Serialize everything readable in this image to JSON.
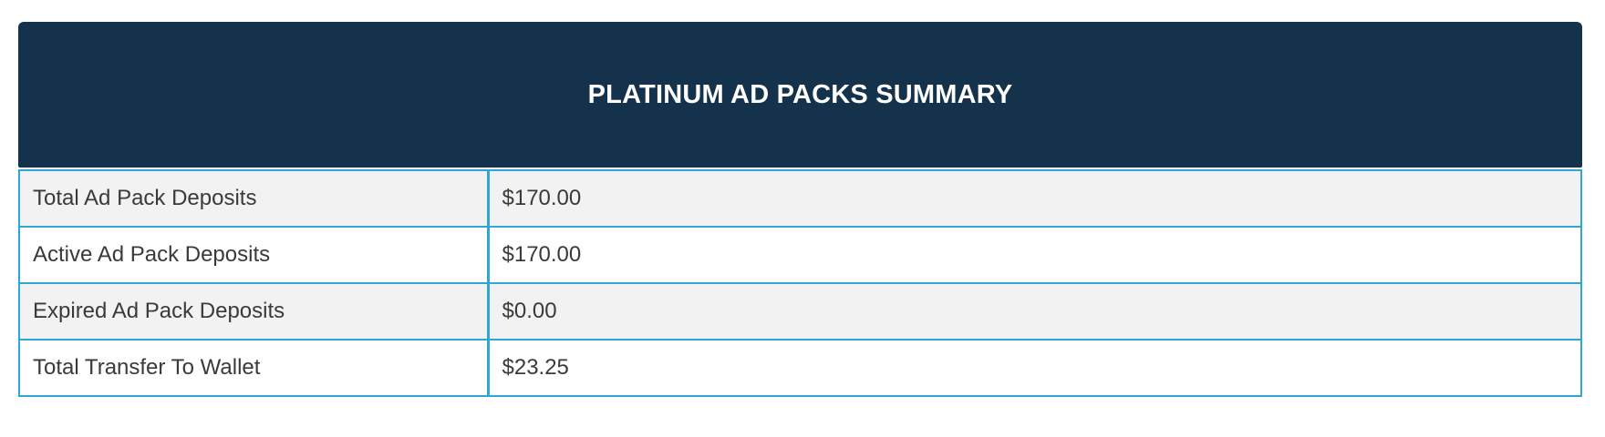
{
  "summary": {
    "title": "PLATINUM AD PACKS SUMMARY",
    "rows": [
      {
        "label": "Total Ad Pack Deposits",
        "value": "$170.00"
      },
      {
        "label": "Active Ad Pack Deposits",
        "value": "$170.00"
      },
      {
        "label": "Expired Ad Pack Deposits",
        "value": "$0.00"
      },
      {
        "label": "Total Transfer To Wallet",
        "value": "$23.25"
      }
    ]
  },
  "colors": {
    "header_background": "#14324c",
    "table_border": "#2ea8d3",
    "striped_row": "#f2f2f2"
  }
}
